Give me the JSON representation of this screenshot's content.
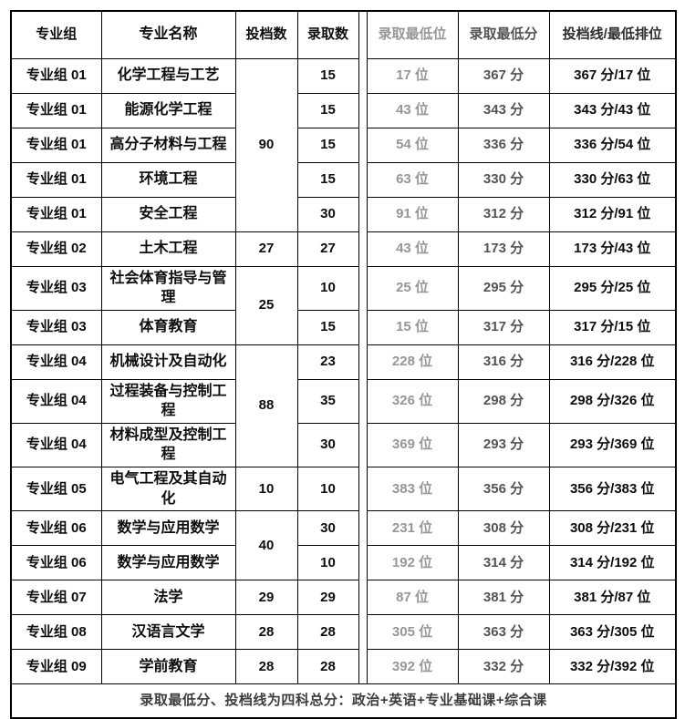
{
  "colors": {
    "border": "#000000",
    "text_primary": "#0d0d0d",
    "rank_gray": "#979797",
    "score_gray": "#545454",
    "header_dark": "#2e2e2e",
    "footnote_gray": "#3d3d3d"
  },
  "table": {
    "headers": [
      {
        "key": "group",
        "label": "专业组"
      },
      {
        "key": "major",
        "label": "专业名称"
      },
      {
        "key": "toudang",
        "label": "投档数"
      },
      {
        "key": "luqu",
        "label": "录取数"
      },
      {
        "key": "rank",
        "label": "录取最低位"
      },
      {
        "key": "score",
        "label": "录取最低分"
      },
      {
        "key": "line",
        "label": "投档线/最低排位"
      }
    ],
    "rows": [
      {
        "group": "专业组 01",
        "major": "化学工程与工艺",
        "toudang": "90",
        "toudang_rowspan": 5,
        "luqu": "15",
        "rank": "17 位",
        "score": "367 分",
        "line": "367 分/17 位"
      },
      {
        "group": "专业组 01",
        "major": "能源化学工程",
        "luqu": "15",
        "rank": "43 位",
        "score": "343 分",
        "line": "343 分/43 位"
      },
      {
        "group": "专业组 01",
        "major": "高分子材料与工程",
        "luqu": "15",
        "rank": "54 位",
        "score": "336 分",
        "line": "336 分/54 位"
      },
      {
        "group": "专业组 01",
        "major": "环境工程",
        "luqu": "15",
        "rank": "63 位",
        "score": "330 分",
        "line": "330 分/63 位"
      },
      {
        "group": "专业组 01",
        "major": "安全工程",
        "luqu": "30",
        "rank": "91 位",
        "score": "312 分",
        "line": "312 分/91 位"
      },
      {
        "group": "专业组 02",
        "major": "土木工程",
        "toudang": "27",
        "toudang_rowspan": 1,
        "luqu": "27",
        "rank": "43 位",
        "score": "173 分",
        "line": "173 分/43 位"
      },
      {
        "group": "专业组 03",
        "major": "社会体育指导与管理",
        "toudang": "25",
        "toudang_rowspan": 2,
        "luqu": "10",
        "rank": "25 位",
        "score": "295 分",
        "line": "295 分/25 位"
      },
      {
        "group": "专业组 03",
        "major": "体育教育",
        "luqu": "15",
        "rank": "15 位",
        "score": "317 分",
        "line": "317 分/15 位"
      },
      {
        "group": "专业组 04",
        "major": "机械设计及自动化",
        "toudang": "88",
        "toudang_rowspan": 3,
        "luqu": "23",
        "rank": "228 位",
        "score": "316 分",
        "line": "316 分/228 位"
      },
      {
        "group": "专业组 04",
        "major": "过程装备与控制工程",
        "luqu": "35",
        "rank": "326 位",
        "score": "298 分",
        "line": "298 分/326 位"
      },
      {
        "group": "专业组 04",
        "major": "材料成型及控制工程",
        "luqu": "30",
        "rank": "369 位",
        "score": "293 分",
        "line": "293 分/369 位"
      },
      {
        "group": "专业组 05",
        "major": "电气工程及其自动化",
        "toudang": "10",
        "toudang_rowspan": 1,
        "luqu": "10",
        "rank": "383 位",
        "score": "356 分",
        "line": "356 分/383 位"
      },
      {
        "group": "专业组 06",
        "major": "数学与应用数学",
        "toudang": "40",
        "toudang_rowspan": 2,
        "luqu": "30",
        "rank": "231 位",
        "score": "308 分",
        "line": "308 分/231 位"
      },
      {
        "group": "专业组 06",
        "major": "数学与应用数学",
        "luqu": "10",
        "rank": "192 位",
        "score": "314 分",
        "line": "314 分/192 位"
      },
      {
        "group": "专业组 07",
        "major": "法学",
        "toudang": "29",
        "toudang_rowspan": 1,
        "luqu": "29",
        "rank": "87 位",
        "score": "381 分",
        "line": "381 分/87 位"
      },
      {
        "group": "专业组 08",
        "major": "汉语言文学",
        "toudang": "28",
        "toudang_rowspan": 1,
        "luqu": "28",
        "rank": "305 位",
        "score": "363 分",
        "line": "363 分/305 位"
      },
      {
        "group": "专业组 09",
        "major": "学前教育",
        "toudang": "28",
        "toudang_rowspan": 1,
        "luqu": "28",
        "rank": "392 位",
        "score": "332 分",
        "line": "332 分/392 位"
      }
    ],
    "footnote": "录取最低分、投档线为四科总分：政治+英语+专业基础课+综合课"
  }
}
